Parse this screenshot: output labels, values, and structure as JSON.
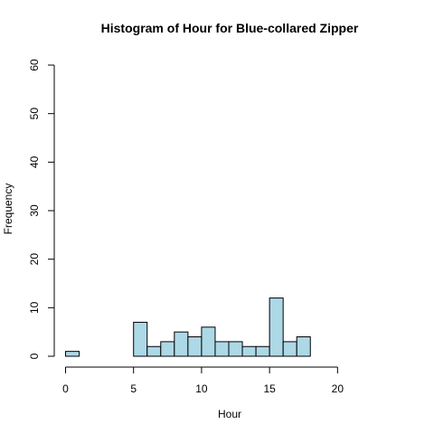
{
  "chart_data": {
    "type": "bar",
    "title": "Histogram of Hour for Blue-collared Zipper",
    "xlabel": "Hour",
    "ylabel": "Frequency",
    "bin_width": 1,
    "bins": [
      {
        "start": 0,
        "end": 1,
        "count": 1
      },
      {
        "start": 5,
        "end": 6,
        "count": 7
      },
      {
        "start": 6,
        "end": 7,
        "count": 2
      },
      {
        "start": 7,
        "end": 8,
        "count": 3
      },
      {
        "start": 8,
        "end": 9,
        "count": 5
      },
      {
        "start": 9,
        "end": 10,
        "count": 4
      },
      {
        "start": 10,
        "end": 11,
        "count": 6
      },
      {
        "start": 11,
        "end": 12,
        "count": 3
      },
      {
        "start": 12,
        "end": 13,
        "count": 3
      },
      {
        "start": 13,
        "end": 14,
        "count": 2
      },
      {
        "start": 14,
        "end": 15,
        "count": 2
      },
      {
        "start": 15,
        "end": 16,
        "count": 12
      },
      {
        "start": 16,
        "end": 17,
        "count": 3
      },
      {
        "start": 17,
        "end": 18,
        "count": 4
      }
    ],
    "xlim": [
      0,
      24
    ],
    "ylim": [
      0,
      60
    ],
    "x_ticks": [
      "0",
      "5",
      "10",
      "15",
      "20"
    ],
    "y_ticks": [
      "0",
      "10",
      "20",
      "30",
      "40",
      "50",
      "60"
    ],
    "bar_color": "#add8e6",
    "grid": false,
    "legend": "none"
  }
}
